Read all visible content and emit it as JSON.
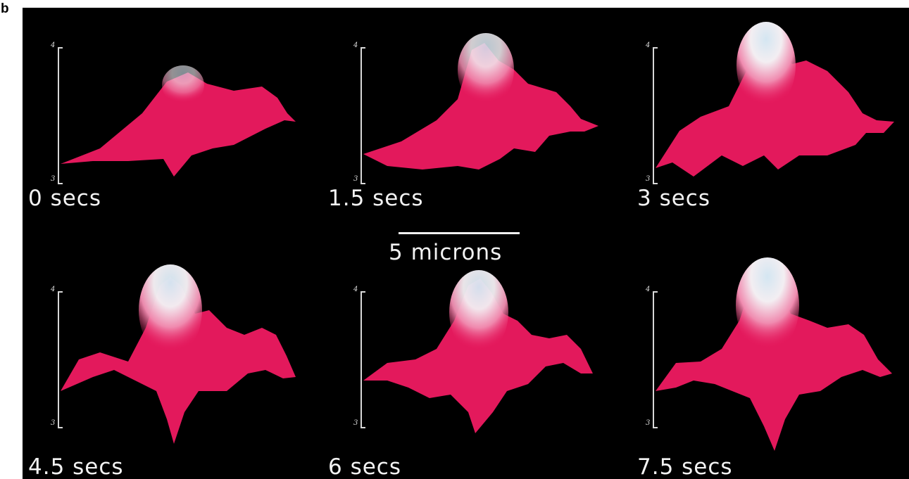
{
  "panel_letter": "b",
  "frames": [
    {
      "time_label": "0 secs",
      "axis_top": "4",
      "axis_bottom": "3",
      "peak_level": 0.45
    },
    {
      "time_label": "1.5 secs",
      "axis_top": "4",
      "axis_bottom": "3",
      "peak_level": 0.8
    },
    {
      "time_label": "3 secs",
      "axis_top": "4",
      "axis_bottom": "3",
      "peak_level": 1.0
    },
    {
      "time_label": "4.5 secs",
      "axis_top": "4",
      "axis_bottom": "3",
      "peak_level": 0.97
    },
    {
      "time_label": "6 secs",
      "axis_top": "4",
      "axis_bottom": "3",
      "peak_level": 0.95
    },
    {
      "time_label": "7.5 secs",
      "axis_top": "4",
      "axis_bottom": "3",
      "peak_level": 1.0
    }
  ],
  "scale_bar": {
    "label": "5 microns"
  },
  "colors": {
    "background": "#000000",
    "surface": "#e8175d",
    "peak": "#cfe0ee",
    "text": "#f2f2f2"
  }
}
